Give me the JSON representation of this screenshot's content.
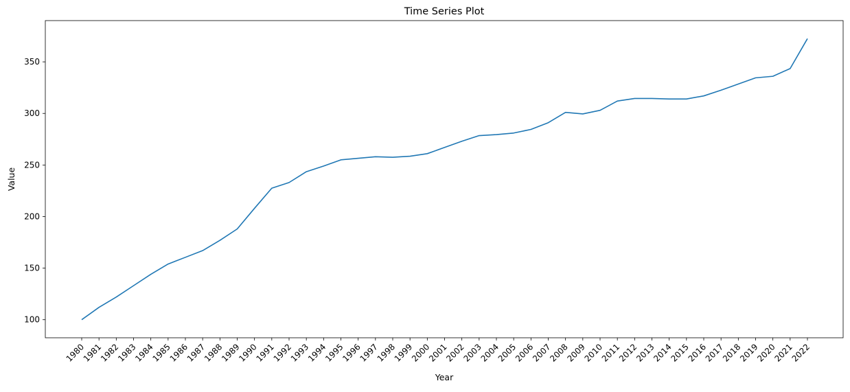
{
  "chart_data": {
    "type": "line",
    "title": "Time Series Plot",
    "xlabel": "Year",
    "ylabel": "Value",
    "x": [
      "1980",
      "1981",
      "1982",
      "1983",
      "1984",
      "1985",
      "1986",
      "1987",
      "1988",
      "1989",
      "1990",
      "1991",
      "1992",
      "1993",
      "1994",
      "1995",
      "1996",
      "1997",
      "1998",
      "1999",
      "2000",
      "2001",
      "2002",
      "2003",
      "2004",
      "2005",
      "2006",
      "2007",
      "2008",
      "2009",
      "2010",
      "2011",
      "2012",
      "2013",
      "2014",
      "2015",
      "2016",
      "2017",
      "2018",
      "2019",
      "2020",
      "2021",
      "2022"
    ],
    "series": [
      {
        "values": [
          100,
          112,
          122,
          133,
          144,
          154,
          160.5,
          167,
          177,
          188,
          208,
          227.5,
          233,
          243.5,
          249,
          255,
          256.5,
          258,
          257.5,
          258.5,
          261,
          267,
          273,
          278.5,
          279.5,
          281,
          284.5,
          291,
          301,
          299.5,
          303,
          312,
          314.5,
          314.5,
          314,
          314,
          317,
          322.5,
          328.5,
          334.5,
          336,
          343.5,
          372.5
        ]
      }
    ],
    "yticks": [
      100,
      150,
      200,
      250,
      300,
      350
    ],
    "ylim": [
      82.5,
      390
    ],
    "grid": false,
    "legend": "none",
    "line_color": "#1f77b4"
  }
}
